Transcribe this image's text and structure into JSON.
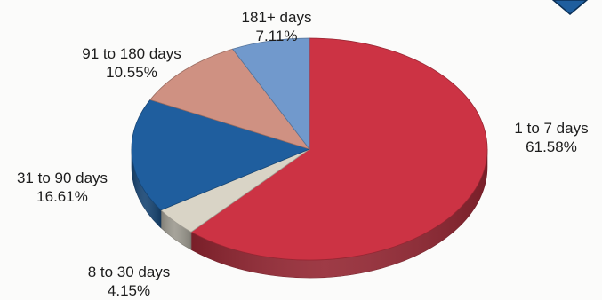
{
  "chart_data": {
    "type": "pie",
    "style": "3d",
    "title": "",
    "slices": [
      {
        "label": "1 to 7 days",
        "value_label": "61.58%",
        "value": 61.58,
        "color": "#cc3344"
      },
      {
        "label": "8 to 30 days",
        "value_label": "4.15%",
        "value": 4.15,
        "color": "#d9d4c6"
      },
      {
        "label": "31 to 90 days",
        "value_label": "16.61%",
        "value": 16.61,
        "color": "#1f5e9e"
      },
      {
        "label": "91 to 180 days",
        "value_label": "10.55%",
        "value": 10.55,
        "color": "#cf9182"
      },
      {
        "label": "181+ days",
        "value_label": "7.11%",
        "value": 7.11,
        "color": "#7199cc"
      }
    ]
  },
  "decorations": {
    "corner_icon": "down-triangle-icon",
    "corner_icon_color": "#1f5e9e"
  }
}
